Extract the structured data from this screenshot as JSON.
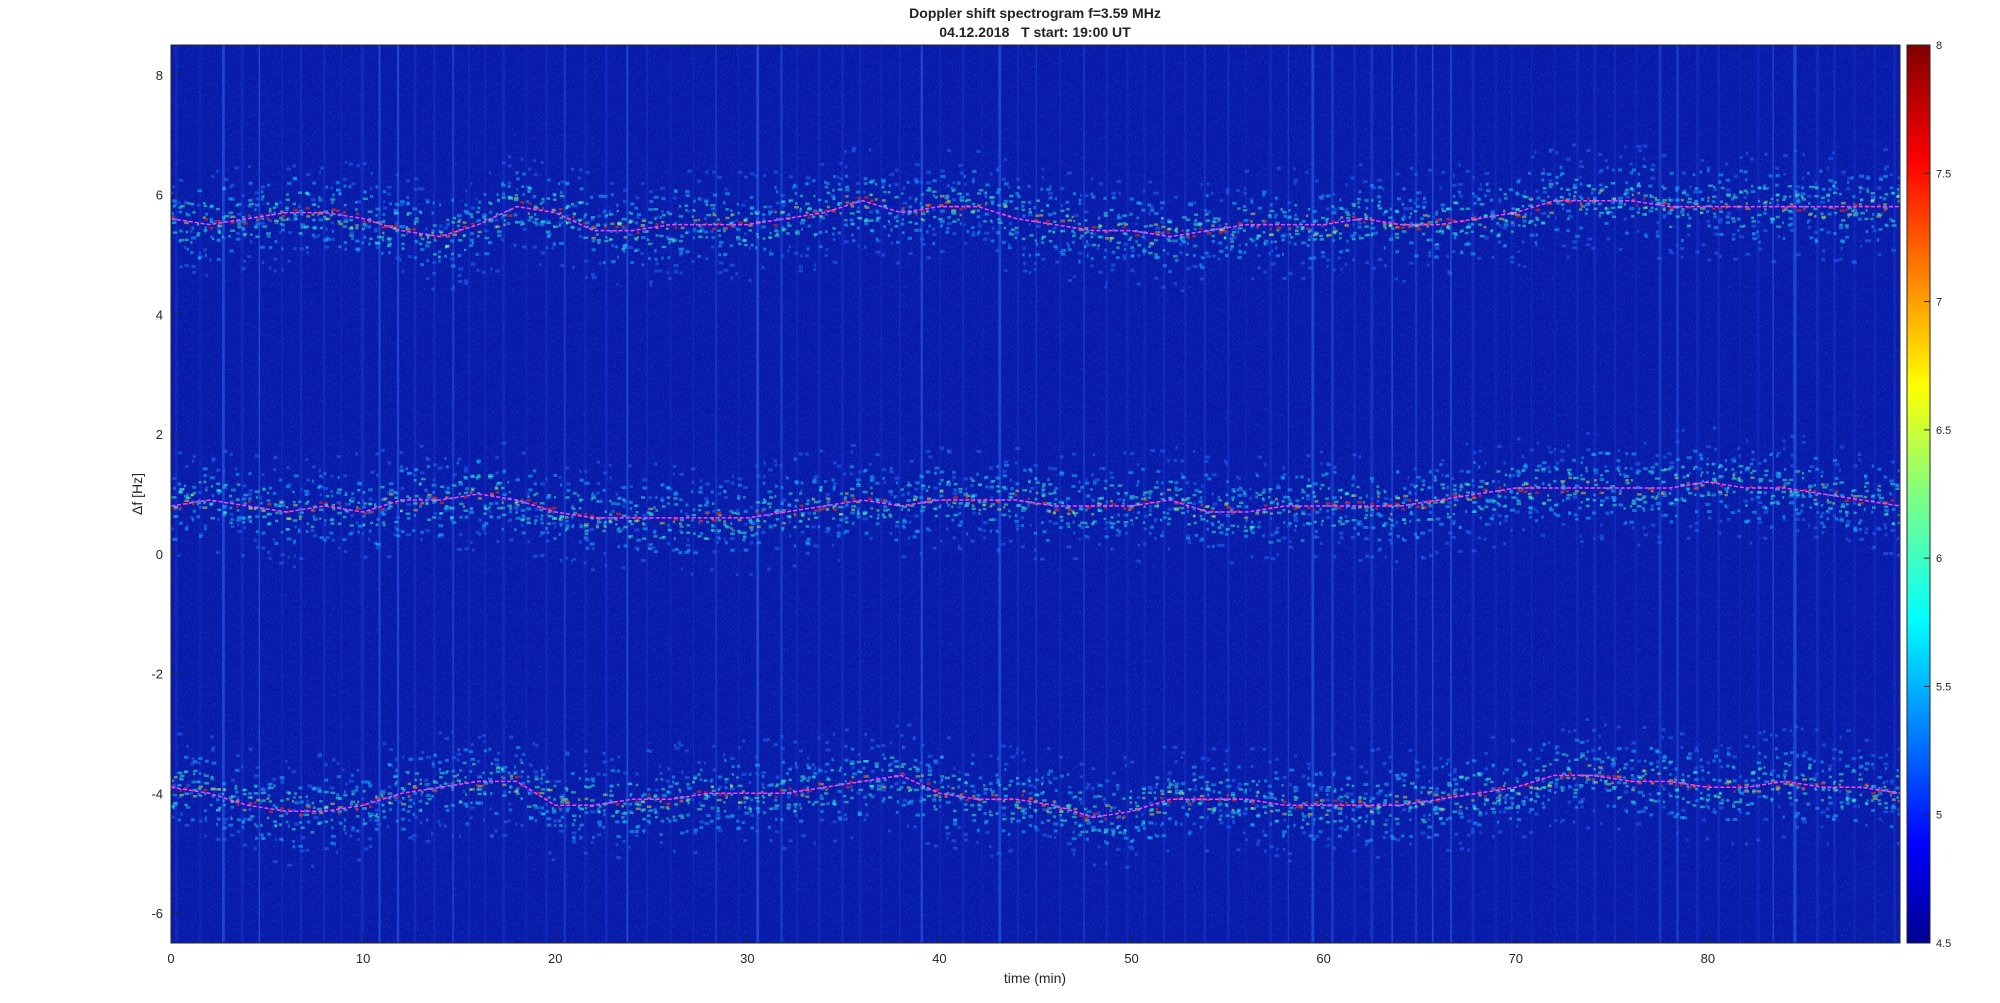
{
  "chart_data": {
    "type": "heatmap",
    "title": "Doppler shift spectrogram f=3.59 MHz",
    "subtitle": "04.12.2018   T start: 19:00 UT",
    "xlabel": "time (min)",
    "ylabel": "Δf [Hz]",
    "xlim": [
      0,
      90
    ],
    "ylim": [
      -6.5,
      8.5
    ],
    "xticks": [
      "0",
      "10",
      "20",
      "30",
      "40",
      "50",
      "60",
      "70",
      "80"
    ],
    "yticks": [
      "8",
      "6",
      "4",
      "2",
      "0",
      "-2",
      "-4",
      "-6"
    ],
    "colorbar": {
      "colormap": "jet",
      "range": [
        4.5,
        8
      ],
      "ticks": [
        "8",
        "7.5",
        "7",
        "6.5",
        "6",
        "5.5",
        "5",
        "4.5"
      ]
    },
    "series": [
      {
        "x": [
          0,
          2,
          4,
          6,
          8,
          10,
          12,
          14,
          16,
          18,
          20,
          22,
          24,
          26,
          28,
          30,
          32,
          34,
          36,
          38,
          40,
          42,
          44,
          46,
          48,
          50,
          52,
          54,
          56,
          58,
          60,
          62,
          64,
          66,
          68,
          70,
          72,
          74,
          76,
          78,
          80,
          82,
          84,
          86,
          88,
          90
        ],
        "y": [
          5.6,
          5.5,
          5.6,
          5.7,
          5.7,
          5.6,
          5.4,
          5.3,
          5.5,
          5.8,
          5.7,
          5.4,
          5.4,
          5.5,
          5.5,
          5.5,
          5.6,
          5.7,
          5.9,
          5.7,
          5.8,
          5.8,
          5.6,
          5.5,
          5.4,
          5.4,
          5.3,
          5.4,
          5.5,
          5.5,
          5.5,
          5.6,
          5.5,
          5.5,
          5.6,
          5.7,
          5.9,
          5.9,
          5.9,
          5.8,
          5.8,
          5.8,
          5.8,
          5.8,
          5.8,
          5.8
        ]
      },
      {
        "x": [
          0,
          2,
          4,
          6,
          8,
          10,
          12,
          14,
          16,
          18,
          20,
          22,
          24,
          26,
          28,
          30,
          32,
          34,
          36,
          38,
          40,
          42,
          44,
          46,
          48,
          50,
          52,
          54,
          56,
          58,
          60,
          62,
          64,
          66,
          68,
          70,
          72,
          74,
          76,
          78,
          80,
          82,
          84,
          86,
          88,
          90
        ],
        "y": [
          0.8,
          0.9,
          0.8,
          0.7,
          0.8,
          0.7,
          0.9,
          0.9,
          1.0,
          0.9,
          0.7,
          0.6,
          0.6,
          0.6,
          0.6,
          0.6,
          0.7,
          0.8,
          0.9,
          0.8,
          0.9,
          0.9,
          0.9,
          0.8,
          0.8,
          0.8,
          0.9,
          0.7,
          0.7,
          0.8,
          0.8,
          0.8,
          0.8,
          0.9,
          1.0,
          1.1,
          1.1,
          1.1,
          1.1,
          1.1,
          1.2,
          1.1,
          1.1,
          1.0,
          0.9,
          0.8
        ]
      },
      {
        "x": [
          0,
          2,
          4,
          6,
          8,
          10,
          12,
          14,
          16,
          18,
          20,
          22,
          24,
          26,
          28,
          30,
          32,
          34,
          36,
          38,
          40,
          42,
          44,
          46,
          48,
          50,
          52,
          54,
          56,
          58,
          60,
          62,
          64,
          66,
          68,
          70,
          72,
          74,
          76,
          78,
          80,
          82,
          84,
          86,
          88,
          90
        ],
        "y": [
          -3.9,
          -4.0,
          -4.2,
          -4.3,
          -4.3,
          -4.2,
          -4.0,
          -3.9,
          -3.8,
          -3.8,
          -4.2,
          -4.2,
          -4.1,
          -4.1,
          -4.0,
          -4.0,
          -4.0,
          -3.9,
          -3.8,
          -3.7,
          -4.0,
          -4.1,
          -4.1,
          -4.2,
          -4.4,
          -4.3,
          -4.1,
          -4.1,
          -4.1,
          -4.2,
          -4.2,
          -4.2,
          -4.2,
          -4.1,
          -4.0,
          -3.9,
          -3.7,
          -3.7,
          -3.8,
          -3.8,
          -3.9,
          -3.9,
          -3.8,
          -3.9,
          -3.9,
          -4.0
        ]
      }
    ]
  }
}
